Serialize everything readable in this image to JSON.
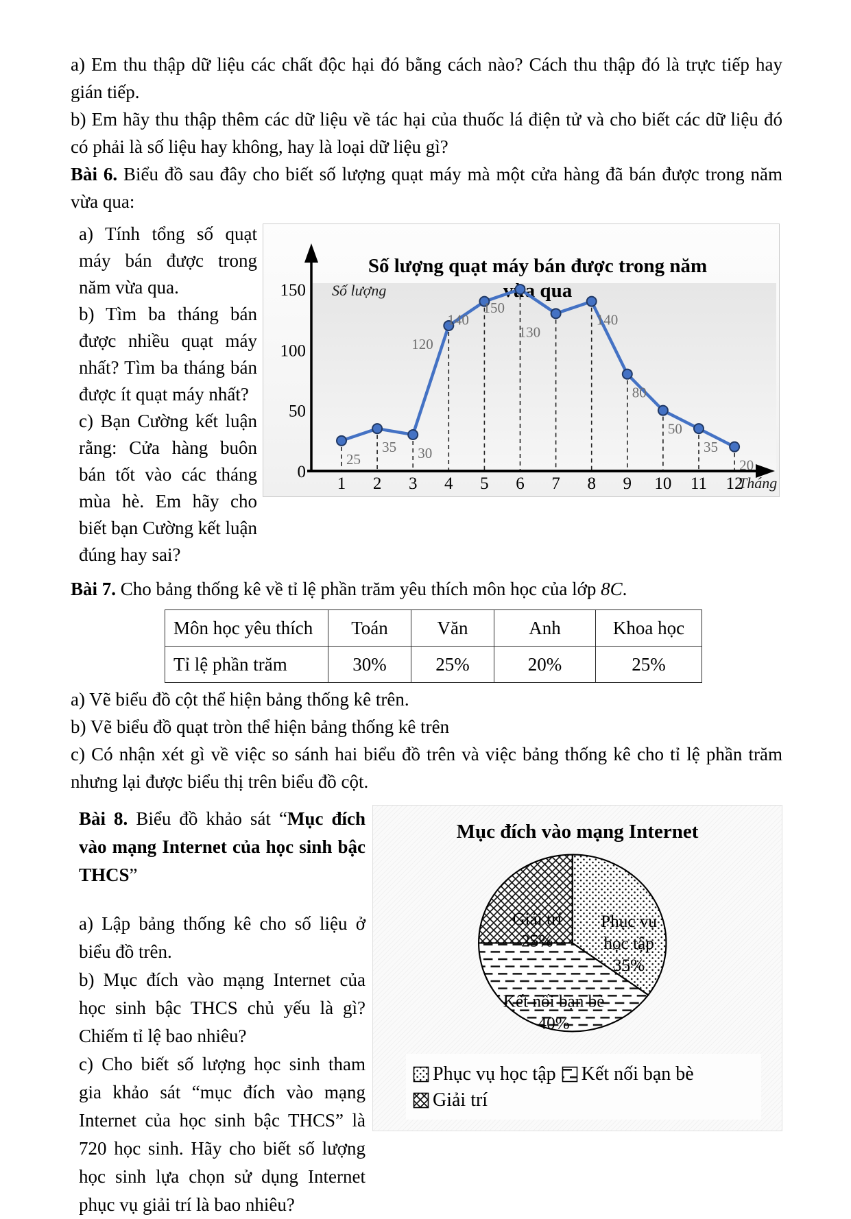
{
  "page": {
    "intro_qa": "a) Em thu thập dữ liệu các chất độc hại đó bằng cách nào? Cách thu thập đó là trực tiếp hay gián tiếp.",
    "intro_qb": "b) Em hãy thu thập thêm các dữ liệu về tác hại của thuốc lá điện tử và cho biết các dữ liệu đó có phải là số liệu hay không, hay là loại dữ liệu gì?"
  },
  "bai6": {
    "label": "Bài 6.",
    "intro": " Biểu đồ sau đây cho biết số lượng quạt máy mà một cửa hàng đã bán được trong năm vừa qua:",
    "qa": "a) Tính tổng số quạt máy bán được trong năm vừa qua.",
    "qb": "b) Tìm ba tháng bán được nhiều quạt máy nhất? Tìm ba tháng bán được ít quạt máy nhất?",
    "qc": "c) Bạn Cường kết luận rằng:  Cửa hàng buôn bán tốt vào các tháng mùa hè. Em hãy cho biết bạn Cường kết luận đúng hay sai?"
  },
  "bai7": {
    "label": "Bài 7.",
    "intro": " Cho bảng thống kê về tỉ lệ phần trăm yêu thích môn học của lớp ",
    "class_name": "8C",
    "intro_end": ".",
    "table": {
      "headers": [
        "Môn học yêu thích",
        "Toán",
        "Văn",
        "Anh",
        "Khoa học"
      ],
      "rows": [
        [
          "Tỉ lệ phần trăm",
          "30%",
          "25%",
          "20%",
          "25%"
        ]
      ]
    },
    "qa": "a) Vẽ biểu đồ cột thể hiện bảng thống kê trên.",
    "qb": "b) Vẽ biểu đồ quạt tròn thể hiện bảng thống kê trên",
    "qc": "c) Có nhận xét gì về việc so sánh hai biểu đồ trên và việc bảng thống kê cho tỉ lệ phần trăm nhưng lại được biểu thị trên biểu đồ cột."
  },
  "bai8": {
    "label": "Bài 8.",
    "intro_pre": " Biểu đồ khảo sát “",
    "survey_title": "Mục đích vào mạng Internet của học sinh bậc THCS",
    "intro_post": "”",
    "qa": "a) Lập bảng thống kê cho số liệu ở biểu đồ trên.",
    "qb": "b) Mục đích vào mạng Internet của học sinh bậc THCS chủ yếu là gì? Chiếm tỉ lệ bao nhiêu?",
    "qc": "c) Cho biết số lượng học sinh tham gia khảo sát “mục đích vào mạng Internet của học sinh bậc THCS” là 720 học sinh. Hãy cho biết số lượng học sinh lựa chọn sử dụng Internet phục vụ giải trí là bao nhiêu?"
  },
  "chart_data": [
    {
      "type": "line",
      "title": "Số lượng quạt máy bán được trong năm vừa qua",
      "title_lines": [
        "Số lượng quạt máy bán được trong năm",
        "vừa qua"
      ],
      "ylabel": "Số lượng",
      "xlabel": "Tháng",
      "x": [
        1,
        2,
        3,
        4,
        5,
        6,
        7,
        8,
        9,
        10,
        11,
        12
      ],
      "values": [
        25,
        35,
        30,
        120,
        140,
        150,
        130,
        140,
        80,
        50,
        35,
        20
      ],
      "ylim": [
        0,
        150
      ],
      "yticks": [
        0,
        50,
        100,
        150
      ],
      "grid": "off",
      "line_color": "#4472c4",
      "marker_edge_color": "#203864",
      "label_color": "#6e6e6e"
    },
    {
      "type": "pie",
      "title": "Mục đích vào mạng Internet",
      "categories": [
        "Phục vụ học tập",
        "Kết nối bạn bè",
        "Giải trí"
      ],
      "values": [
        35,
        40,
        25
      ],
      "labels": [
        "Phục vụ học tập 35%",
        "Kết nối bạn bè 40%",
        "Giải trí 25%"
      ],
      "legend_position": "bottom"
    }
  ]
}
